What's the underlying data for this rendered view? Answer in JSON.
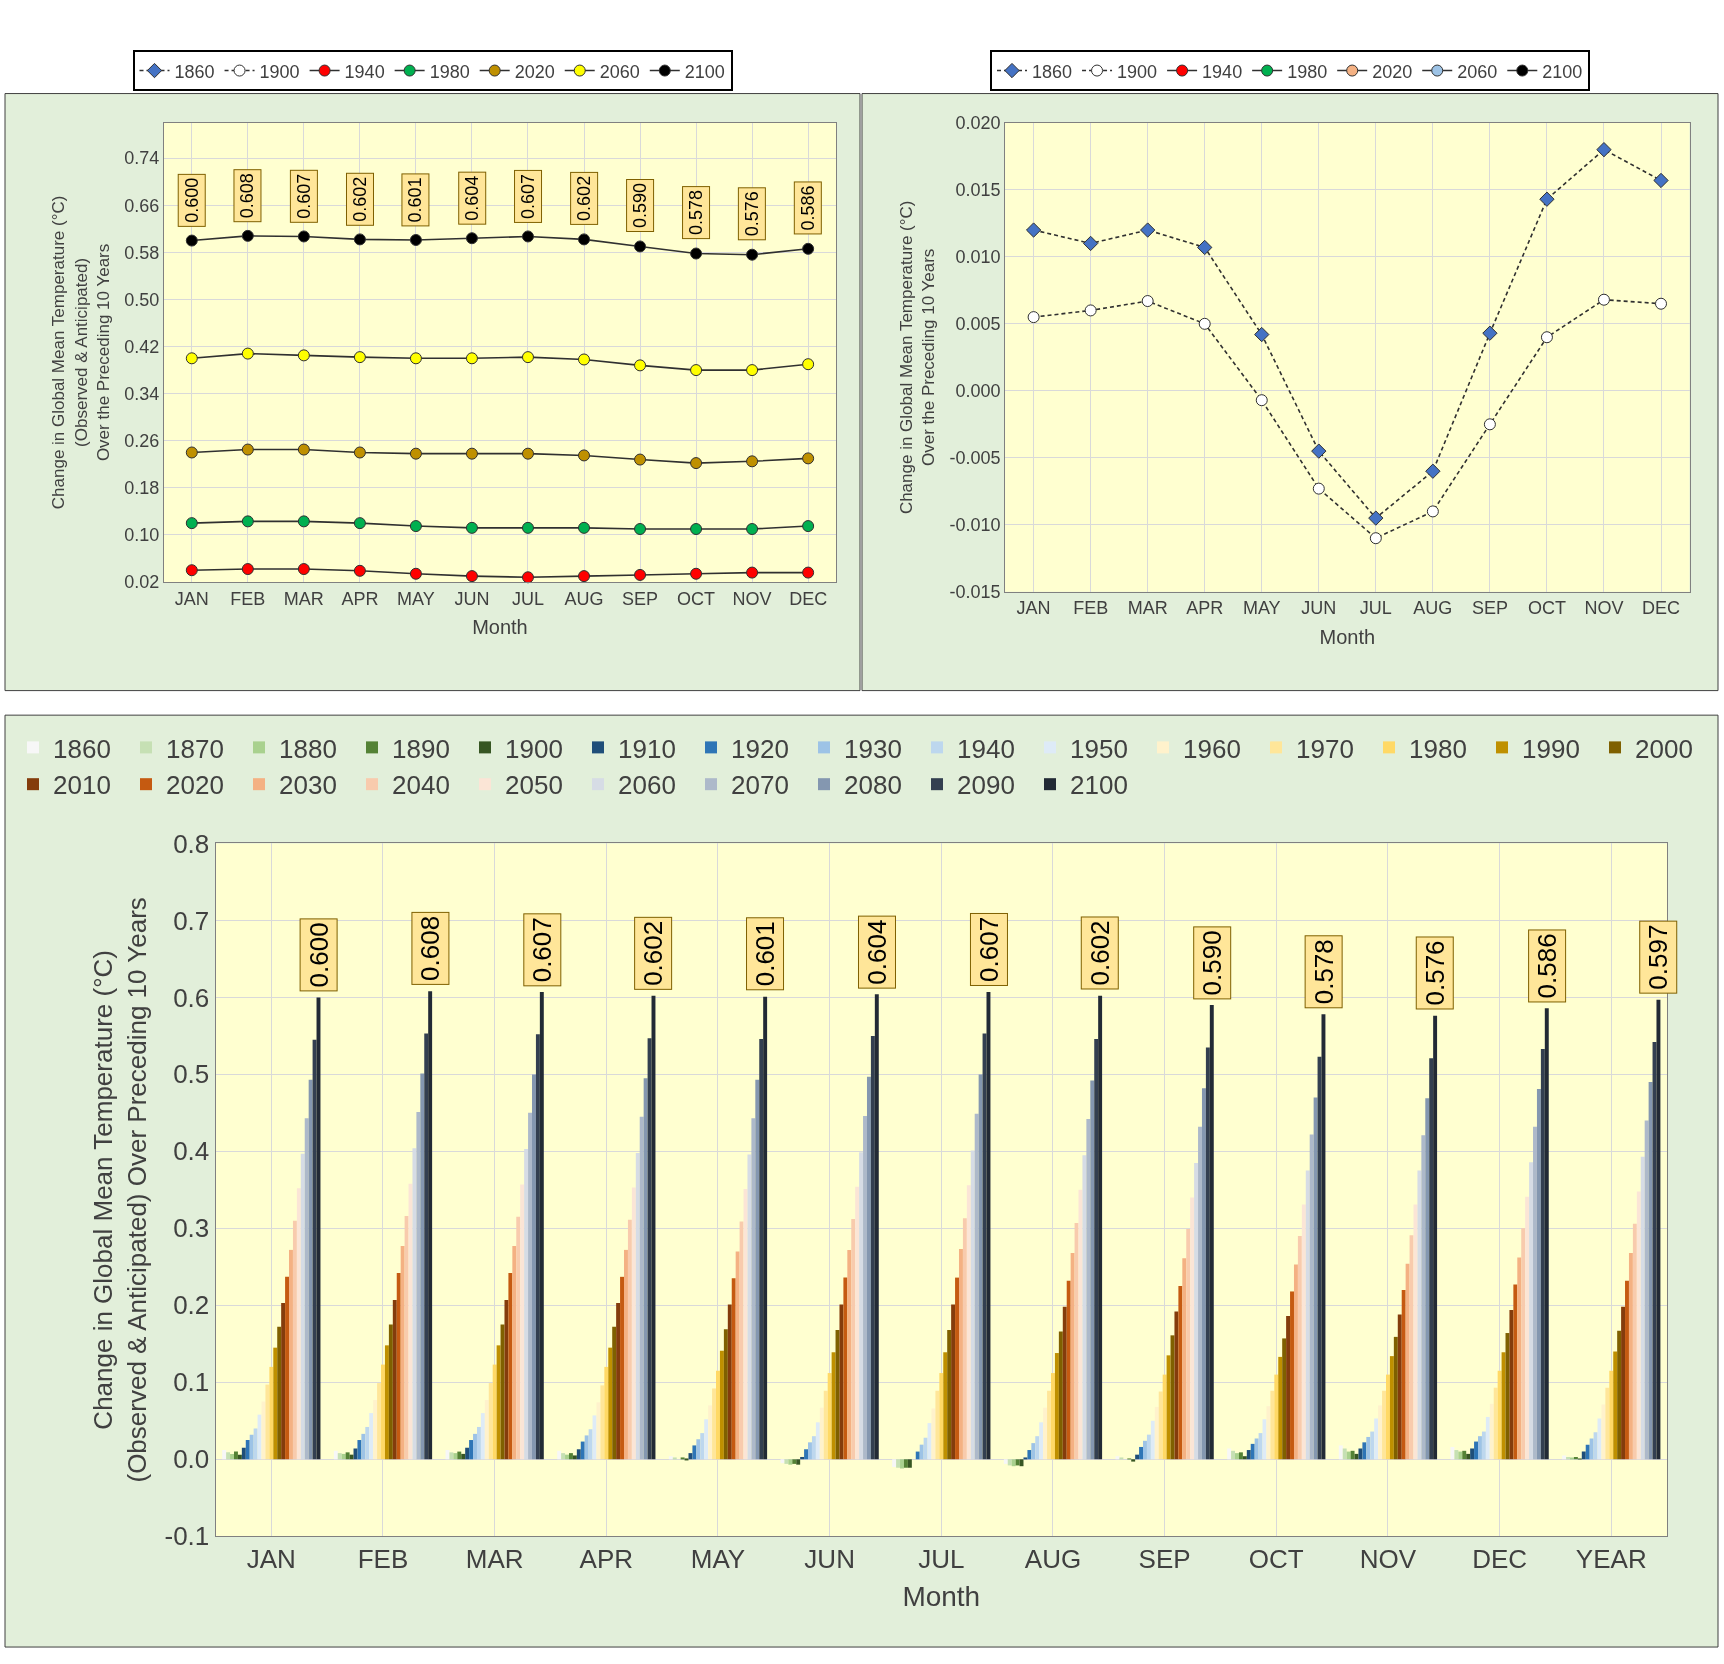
{
  "chart_data": [
    {
      "type": "line",
      "xlabel": "Month",
      "ylabel": "Change in Global Mean Temperature (°C)\n(Observed & Anticipated)\nOver the Preceding 10 Years",
      "categories": [
        "JAN",
        "FEB",
        "MAR",
        "APR",
        "MAY",
        "JUN",
        "JUL",
        "AUG",
        "SEP",
        "OCT",
        "NOV",
        "DEC"
      ],
      "ylim": [
        0.02,
        0.8
      ],
      "yticks": [
        {
          "value": 0.02,
          "label": "0.02"
        },
        {
          "value": 0.1,
          "label": "0.10"
        },
        {
          "value": 0.18,
          "label": "0.18"
        },
        {
          "value": 0.26,
          "label": "0.26"
        },
        {
          "value": 0.34,
          "label": "0.34"
        },
        {
          "value": 0.42,
          "label": "0.42"
        },
        {
          "value": 0.5,
          "label": "0.50"
        },
        {
          "value": 0.58,
          "label": "0.58"
        },
        {
          "value": 0.66,
          "label": "0.66"
        },
        {
          "value": 0.74,
          "label": "0.74"
        }
      ],
      "grid": true,
      "legend": "top",
      "marker": "circle",
      "line_style": "solid",
      "series": [
        {
          "name": "1860",
          "color": "#4472c4",
          "marker": "diamond",
          "line_style": "dashed",
          "values": [
            null,
            null,
            null,
            null,
            null,
            null,
            null,
            null,
            null,
            null,
            null,
            null
          ]
        },
        {
          "name": "1900",
          "color": "#ffffff",
          "line_style": "dashed",
          "values": [
            null,
            null,
            null,
            null,
            null,
            null,
            null,
            null,
            null,
            null,
            null,
            null
          ]
        },
        {
          "name": "1940",
          "color": "#ff0000",
          "values": [
            0.04,
            0.042,
            0.042,
            0.039,
            0.034,
            0.03,
            0.028,
            0.03,
            0.032,
            0.034,
            0.036,
            0.036
          ]
        },
        {
          "name": "1980",
          "color": "#00b050",
          "values": [
            0.12,
            0.123,
            0.123,
            0.12,
            0.115,
            0.112,
            0.112,
            0.112,
            0.11,
            0.11,
            0.11,
            0.115
          ]
        },
        {
          "name": "2020",
          "color": "#bf9000",
          "values": [
            0.24,
            0.245,
            0.245,
            0.24,
            0.238,
            0.238,
            0.238,
            0.235,
            0.228,
            0.222,
            0.225,
            0.23
          ]
        },
        {
          "name": "2060",
          "color": "#ffff00",
          "values": [
            0.4,
            0.408,
            0.405,
            0.402,
            0.4,
            0.4,
            0.402,
            0.398,
            0.388,
            0.38,
            0.38,
            0.39
          ]
        },
        {
          "name": "2100",
          "color": "#000000",
          "values": [
            0.6,
            0.608,
            0.607,
            0.602,
            0.601,
            0.604,
            0.607,
            0.602,
            0.59,
            0.578,
            0.576,
            0.586
          ],
          "value_labels": [
            "0.600",
            "0.608",
            "0.607",
            "0.602",
            "0.601",
            "0.604",
            "0.607",
            "0.602",
            "0.590",
            "0.578",
            "0.576",
            "0.586"
          ]
        }
      ]
    },
    {
      "type": "line",
      "xlabel": "Month",
      "ylabel": "Change in Global Mean Temperature (°C)\nOver the Preceding 10 Years",
      "categories": [
        "JAN",
        "FEB",
        "MAR",
        "APR",
        "MAY",
        "JUN",
        "JUL",
        "AUG",
        "SEP",
        "OCT",
        "NOV",
        "DEC"
      ],
      "ylim": [
        -0.015,
        0.02
      ],
      "yticks": [
        {
          "value": -0.015,
          "label": "-0.015"
        },
        {
          "value": -0.01,
          "label": "-0.010"
        },
        {
          "value": -0.005,
          "label": "-0.005"
        },
        {
          "value": 0,
          "label": "0.000"
        },
        {
          "value": 0.005,
          "label": "0.005"
        },
        {
          "value": 0.01,
          "label": "0.010"
        },
        {
          "value": 0.015,
          "label": "0.015"
        },
        {
          "value": 0.02,
          "label": "0.020"
        }
      ],
      "grid": true,
      "legend": "top",
      "marker": "circle",
      "line_style": "solid",
      "series": [
        {
          "name": "1860",
          "color": "#4472c4",
          "marker": "diamond",
          "line_style": "dashed",
          "values": [
            0.012,
            0.011,
            0.012,
            0.0107,
            0.0042,
            -0.0045,
            -0.0095,
            -0.006,
            0.0043,
            0.0143,
            0.018,
            0.0157
          ]
        },
        {
          "name": "1900",
          "color": "#ffffff",
          "line_style": "dashed",
          "values": [
            0.0055,
            0.006,
            0.0067,
            0.005,
            -0.0007,
            -0.0073,
            -0.011,
            -0.009,
            -0.0025,
            0.004,
            0.0068,
            0.0065
          ]
        },
        {
          "name": "1940",
          "color": "#ff0000",
          "values": [
            null,
            null,
            null,
            null,
            null,
            null,
            null,
            null,
            null,
            null,
            null,
            null
          ]
        },
        {
          "name": "1980",
          "color": "#00b050",
          "values": [
            null,
            null,
            null,
            null,
            null,
            null,
            null,
            null,
            null,
            null,
            null,
            null
          ]
        },
        {
          "name": "2020",
          "color": "#f4b183",
          "values": [
            null,
            null,
            null,
            null,
            null,
            null,
            null,
            null,
            null,
            null,
            null,
            null
          ]
        },
        {
          "name": "2060",
          "color": "#9dc3e6",
          "values": [
            null,
            null,
            null,
            null,
            null,
            null,
            null,
            null,
            null,
            null,
            null,
            null
          ]
        },
        {
          "name": "2100",
          "color": "#000000",
          "values": [
            null,
            null,
            null,
            null,
            null,
            null,
            null,
            null,
            null,
            null,
            null,
            null
          ]
        }
      ]
    },
    {
      "type": "bar",
      "xlabel": "Month",
      "ylabel": "Change in Global Mean Temperature (°C)\n(Observed & Anticipated) Over Preceding 10 Years",
      "categories": [
        "JAN",
        "FEB",
        "MAR",
        "APR",
        "MAY",
        "JUN",
        "JUL",
        "AUG",
        "SEP",
        "OCT",
        "NOV",
        "DEC",
        "YEAR"
      ],
      "ylim": [
        -0.1,
        0.8
      ],
      "yticks": [
        {
          "value": -0.1,
          "label": "-0.1"
        },
        {
          "value": 0,
          "label": "0.0"
        },
        {
          "value": 0.1,
          "label": "0.1"
        },
        {
          "value": 0.2,
          "label": "0.2"
        },
        {
          "value": 0.3,
          "label": "0.3"
        },
        {
          "value": 0.4,
          "label": "0.4"
        },
        {
          "value": 0.5,
          "label": "0.5"
        },
        {
          "value": 0.6,
          "label": "0.6"
        },
        {
          "value": 0.7,
          "label": "0.7"
        },
        {
          "value": 0.8,
          "label": "0.8"
        }
      ],
      "grid": true,
      "legend": "top",
      "series": [
        {
          "name": "1860",
          "color": "#f7f7f7",
          "values": [
            0.012,
            0.011,
            0.012,
            0.011,
            0.004,
            -0.005,
            -0.01,
            -0.006,
            0.004,
            0.014,
            0.018,
            0.016,
            0.005
          ]
        },
        {
          "name": "1870",
          "color": "#c6e0b4",
          "values": [
            0.009,
            0.008,
            0.009,
            0.008,
            0.002,
            -0.006,
            -0.011,
            -0.008,
            0.002,
            0.011,
            0.014,
            0.012,
            0.003
          ]
        },
        {
          "name": "1880",
          "color": "#a9d18e",
          "values": [
            0.007,
            0.007,
            0.008,
            0.006,
            0.0,
            -0.007,
            -0.012,
            -0.009,
            0.0,
            0.008,
            0.01,
            0.01,
            0.002
          ]
        },
        {
          "name": "1890",
          "color": "#548235",
          "values": [
            0.01,
            0.009,
            0.01,
            0.008,
            0.002,
            -0.006,
            -0.011,
            -0.008,
            0.001,
            0.009,
            0.011,
            0.011,
            0.003
          ]
        },
        {
          "name": "1900",
          "color": "#375623",
          "values": [
            0.006,
            0.006,
            0.007,
            0.005,
            -0.001,
            -0.007,
            -0.011,
            -0.009,
            -0.003,
            0.004,
            0.007,
            0.007,
            0.001
          ]
        },
        {
          "name": "1910",
          "color": "#1f4e79",
          "values": [
            0.015,
            0.014,
            0.015,
            0.013,
            0.008,
            0.003,
            0.0,
            0.002,
            0.006,
            0.012,
            0.014,
            0.014,
            0.01
          ]
        },
        {
          "name": "1920",
          "color": "#2e75b6",
          "values": [
            0.025,
            0.025,
            0.025,
            0.023,
            0.018,
            0.013,
            0.01,
            0.012,
            0.016,
            0.02,
            0.022,
            0.023,
            0.019
          ]
        },
        {
          "name": "1930",
          "color": "#9dc3e6",
          "values": [
            0.032,
            0.033,
            0.033,
            0.031,
            0.026,
            0.022,
            0.019,
            0.021,
            0.024,
            0.027,
            0.029,
            0.03,
            0.027
          ]
        },
        {
          "name": "1940",
          "color": "#bdd7ee",
          "values": [
            0.04,
            0.042,
            0.042,
            0.039,
            0.034,
            0.03,
            0.028,
            0.03,
            0.032,
            0.034,
            0.036,
            0.036,
            0.035
          ]
        },
        {
          "name": "1950",
          "color": "#deebf7",
          "values": [
            0.058,
            0.06,
            0.06,
            0.057,
            0.052,
            0.048,
            0.047,
            0.048,
            0.05,
            0.052,
            0.053,
            0.055,
            0.053
          ]
        },
        {
          "name": "1960",
          "color": "#fff2cc",
          "values": [
            0.075,
            0.077,
            0.077,
            0.074,
            0.07,
            0.067,
            0.066,
            0.067,
            0.068,
            0.069,
            0.07,
            0.072,
            0.071
          ]
        },
        {
          "name": "1970",
          "color": "#ffe699",
          "values": [
            0.097,
            0.099,
            0.099,
            0.096,
            0.092,
            0.089,
            0.089,
            0.089,
            0.088,
            0.089,
            0.089,
            0.093,
            0.093
          ]
        },
        {
          "name": "1980",
          "color": "#ffd966",
          "values": [
            0.12,
            0.123,
            0.123,
            0.12,
            0.115,
            0.112,
            0.112,
            0.112,
            0.11,
            0.11,
            0.11,
            0.115,
            0.115
          ]
        },
        {
          "name": "1990",
          "color": "#bf9000",
          "values": [
            0.145,
            0.148,
            0.148,
            0.145,
            0.141,
            0.139,
            0.139,
            0.138,
            0.135,
            0.133,
            0.134,
            0.139,
            0.14
          ]
        },
        {
          "name": "2000",
          "color": "#7f6000",
          "values": [
            0.172,
            0.175,
            0.175,
            0.172,
            0.169,
            0.168,
            0.168,
            0.166,
            0.161,
            0.157,
            0.159,
            0.164,
            0.167
          ]
        },
        {
          "name": "2010",
          "color": "#843c0c",
          "values": [
            0.203,
            0.207,
            0.207,
            0.203,
            0.201,
            0.201,
            0.201,
            0.198,
            0.192,
            0.186,
            0.188,
            0.194,
            0.198
          ]
        },
        {
          "name": "2020",
          "color": "#c55a11",
          "values": [
            0.237,
            0.242,
            0.242,
            0.237,
            0.235,
            0.236,
            0.236,
            0.232,
            0.225,
            0.218,
            0.22,
            0.227,
            0.232
          ]
        },
        {
          "name": "2030",
          "color": "#f4b183",
          "values": [
            0.272,
            0.277,
            0.277,
            0.272,
            0.27,
            0.272,
            0.273,
            0.268,
            0.261,
            0.253,
            0.254,
            0.262,
            0.268
          ]
        },
        {
          "name": "2040",
          "color": "#f8cbad",
          "values": [
            0.31,
            0.316,
            0.315,
            0.311,
            0.309,
            0.312,
            0.313,
            0.307,
            0.299,
            0.29,
            0.291,
            0.3,
            0.306
          ]
        },
        {
          "name": "2050",
          "color": "#fbe5d6",
          "values": [
            0.352,
            0.358,
            0.357,
            0.353,
            0.351,
            0.354,
            0.356,
            0.35,
            0.34,
            0.331,
            0.331,
            0.341,
            0.348
          ]
        },
        {
          "name": "2060",
          "color": "#d6dce5",
          "values": [
            0.397,
            0.404,
            0.403,
            0.398,
            0.396,
            0.399,
            0.401,
            0.395,
            0.385,
            0.375,
            0.375,
            0.386,
            0.393
          ]
        },
        {
          "name": "2070",
          "color": "#adb9ca",
          "values": [
            0.443,
            0.451,
            0.45,
            0.445,
            0.443,
            0.446,
            0.449,
            0.442,
            0.432,
            0.422,
            0.421,
            0.432,
            0.44
          ]
        },
        {
          "name": "2080",
          "color": "#8497b0",
          "values": [
            0.493,
            0.501,
            0.5,
            0.495,
            0.493,
            0.497,
            0.5,
            0.492,
            0.482,
            0.47,
            0.469,
            0.481,
            0.49
          ]
        },
        {
          "name": "2090",
          "color": "#333f50",
          "values": [
            0.545,
            0.553,
            0.552,
            0.547,
            0.546,
            0.55,
            0.553,
            0.546,
            0.535,
            0.523,
            0.521,
            0.533,
            0.542
          ]
        },
        {
          "name": "2100",
          "color": "#222a35",
          "values": [
            0.6,
            0.608,
            0.607,
            0.602,
            0.601,
            0.604,
            0.607,
            0.602,
            0.59,
            0.578,
            0.576,
            0.586,
            0.597
          ],
          "value_labels": [
            "0.600",
            "0.608",
            "0.607",
            "0.602",
            "0.601",
            "0.604",
            "0.607",
            "0.602",
            "0.590",
            "0.578",
            "0.576",
            "0.586",
            "0.597"
          ]
        }
      ]
    }
  ]
}
